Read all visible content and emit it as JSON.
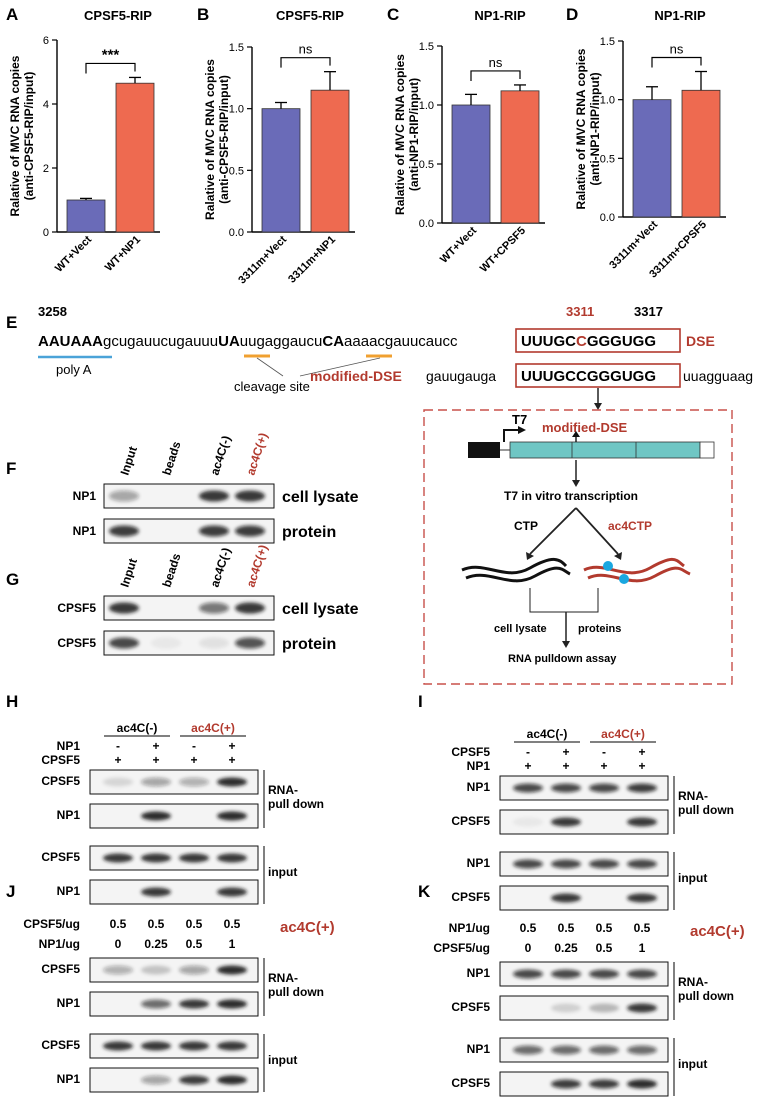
{
  "colors": {
    "bar_blue": "#6a6bb8",
    "bar_red": "#ee6a50",
    "dark_red": "#b23a2e",
    "teal": "#6fc6c4",
    "cyan_dot": "#1aa7e0",
    "line_blue": "#4aa3d8",
    "line_orange": "#f0a030"
  },
  "panels": {
    "A": "A",
    "B": "B",
    "C": "C",
    "D": "D",
    "E": "E",
    "F": "F",
    "G": "G",
    "H": "H",
    "I": "I",
    "J": "J",
    "K": "K"
  },
  "chart_data": [
    {
      "type": "bar",
      "panel": "A",
      "title": "CPSF5-RIP",
      "ylabel": "Ralative of MVC RNA copies (anti-CPSF5-RIP/input)",
      "categories": [
        "WT+Vect",
        "WT+NP1"
      ],
      "values": [
        1.0,
        4.65
      ],
      "errors": [
        0.05,
        0.18
      ],
      "ylim": [
        0,
        6
      ],
      "yticks": [
        "0",
        "2",
        "4",
        "6"
      ],
      "significance": "***"
    },
    {
      "type": "bar",
      "panel": "B",
      "title": "CPSF5-RIP",
      "ylabel": "Ralative of MVC RNA copies (anti-CPSF5-RIP/input)",
      "categories": [
        "3311m+Vect",
        "3311m+NP1"
      ],
      "values": [
        1.0,
        1.15
      ],
      "errors": [
        0.05,
        0.15
      ],
      "ylim": [
        0,
        1.5
      ],
      "yticks": [
        "0.0",
        "0.5",
        "1.0",
        "1.5"
      ],
      "significance": "ns"
    },
    {
      "type": "bar",
      "panel": "C",
      "title": "NP1-RIP",
      "ylabel": "Ralative of MVC RNA copies (anti-NP1-RIP/input)",
      "categories": [
        "WT+Vect",
        "WT+CPSF5"
      ],
      "values": [
        1.0,
        1.12
      ],
      "errors": [
        0.09,
        0.05
      ],
      "ylim": [
        0,
        1.5
      ],
      "yticks": [
        "0.0",
        "0.5",
        "1.0",
        "1.5"
      ],
      "significance": "ns"
    },
    {
      "type": "bar",
      "panel": "D",
      "title": "NP1-RIP",
      "ylabel": "Ralative of MVC RNA copies (anti-NP1-RIP/input)",
      "categories": [
        "3311m+Vect",
        "3311m+CPSF5"
      ],
      "values": [
        1.0,
        1.08
      ],
      "errors": [
        0.11,
        0.16
      ],
      "ylim": [
        0,
        1.5
      ],
      "yticks": [
        "0.0",
        "0.5",
        "1.0",
        "1.5"
      ],
      "significance": "ns"
    }
  ],
  "seq": {
    "pos_start": "3258",
    "pos_3311": "3311",
    "pos_3317": "3317",
    "polya_bold": "AAUAAA",
    "s1": "gcugauucugauuu",
    "ua": "UA",
    "s2": "uugaggaucu",
    "ca": "CA",
    "s3": "aaaacgauucaucc",
    "dse_a": "UUUGC",
    "dse_c": "C",
    "dse_b": "GGGUGG",
    "dse_label": "DSE",
    "polya_label": "poly A",
    "cleavage_label": "cleavage site",
    "mod_label": "modified-DSE",
    "mod_left": "gauugauga",
    "mod_box": "UUUGCCGGGUGG",
    "mod_right": "uuagguaag"
  },
  "schematic": {
    "t7": "T7",
    "mod_dse": "modified-DSE",
    "transcription": "T7 in vitro transcription",
    "ctp": "CTP",
    "ac4ctp": "ac4CTP",
    "cell_lysate": "cell lysate",
    "proteins": "proteins",
    "assay": "RNA pulldown assay"
  },
  "blotF": {
    "cols": [
      "Input",
      "beads",
      "ac4C(-)",
      "ac4C(+)"
    ],
    "rows": [
      "NP1",
      "NP1"
    ],
    "right": [
      "cell lysate",
      "protein"
    ]
  },
  "blotG": {
    "cols": [
      "Input",
      "beads",
      "ac4C(-)",
      "ac4C(+)"
    ],
    "rows": [
      "CPSF5",
      "CPSF5"
    ],
    "right": [
      "cell lysate",
      "protein"
    ]
  },
  "blotH": {
    "grp1": "ac4C(-)",
    "grp2": "ac4C(+)",
    "r1": "NP1",
    "r1v": [
      "-",
      "+",
      "-",
      "+"
    ],
    "r2": "CPSF5",
    "r2v": [
      "+",
      "+",
      "+",
      "+"
    ],
    "rows": [
      "CPSF5",
      "NP1",
      "CPSF5",
      "NP1"
    ],
    "pd1": "RNA-",
    "pd2": "pull down",
    "inp": "input"
  },
  "blotI": {
    "grp1": "ac4C(-)",
    "grp2": "ac4C(+)",
    "r1": "CPSF5",
    "r1v": [
      "-",
      "+",
      "-",
      "+"
    ],
    "r2": "NP1",
    "r2v": [
      "+",
      "+",
      "+",
      "+"
    ],
    "rows": [
      "NP1",
      "CPSF5",
      "NP1",
      "CPSF5"
    ],
    "pd1": "RNA-",
    "pd2": "pull down",
    "inp": "input"
  },
  "blotJ": {
    "r1": "CPSF5/ug",
    "r1v": [
      "0.5",
      "0.5",
      "0.5",
      "0.5"
    ],
    "r2": "NP1/ug",
    "r2v": [
      "0",
      "0.25",
      "0.5",
      "1"
    ],
    "tag": "ac4C(+)",
    "rows": [
      "CPSF5",
      "NP1",
      "CPSF5",
      "NP1"
    ],
    "pd1": "RNA-",
    "pd2": "pull down",
    "inp": "input"
  },
  "blotK": {
    "r1": "NP1/ug",
    "r1v": [
      "0.5",
      "0.5",
      "0.5",
      "0.5"
    ],
    "r2": "CPSF5/ug",
    "r2v": [
      "0",
      "0.25",
      "0.5",
      "1"
    ],
    "tag": "ac4C(+)",
    "rows": [
      "NP1",
      "CPSF5",
      "NP1",
      "CPSF5"
    ],
    "pd1": "RNA-",
    "pd2": "pull down",
    "inp": "input"
  }
}
